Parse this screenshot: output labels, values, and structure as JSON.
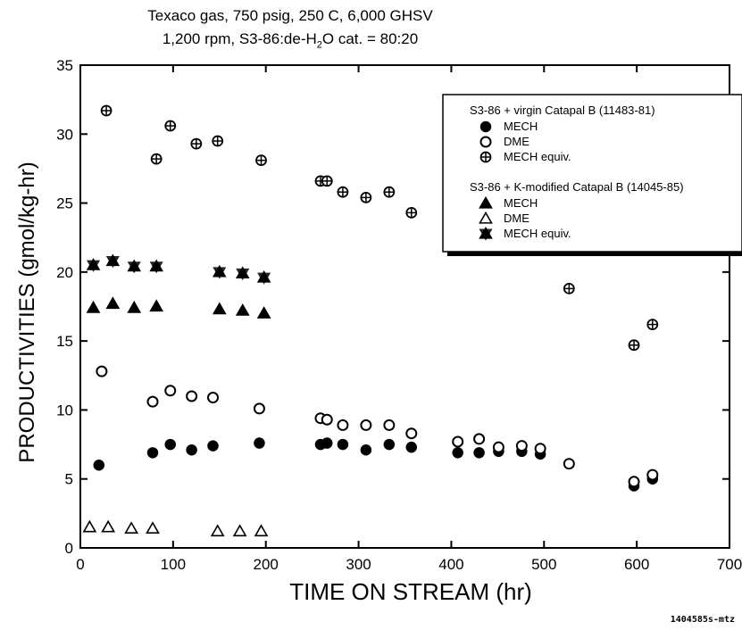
{
  "chart_data": {
    "type": "scatter",
    "title": "Texaco gas, 750 psig, 250 C, 6,000 GHSV",
    "subtitle_prefix": "1,200 rpm, S3-86:de-H",
    "subtitle_sub": "2",
    "subtitle_suffix": "O cat. = 80:20",
    "xlabel": "TIME ON STREAM (hr)",
    "ylabel": "PRODUCTIVITIES (gmol/kg-hr)",
    "xlim": [
      0,
      700
    ],
    "ylim": [
      0,
      35
    ],
    "xticks": [
      "0",
      "100",
      "200",
      "300",
      "400",
      "500",
      "600",
      "700"
    ],
    "yticks": [
      "0",
      "5",
      "10",
      "15",
      "20",
      "25",
      "30",
      "35"
    ],
    "legend": {
      "group1": "S3-86 + virgin Catapal B (11483-81)",
      "group2": "S3-86 + K-modified Catapal B (14045-85)"
    },
    "series": [
      {
        "name": "MECH",
        "group": 1,
        "marker": "filled-circle",
        "x": [
          20,
          78,
          97,
          120,
          143,
          193,
          259,
          266,
          283,
          308,
          333,
          357,
          407,
          430,
          451,
          476,
          496,
          597,
          617
        ],
        "y": [
          6.0,
          6.9,
          7.5,
          7.1,
          7.4,
          7.6,
          7.5,
          7.6,
          7.5,
          7.1,
          7.5,
          7.3,
          6.9,
          6.9,
          7.0,
          7.0,
          6.8,
          4.5,
          5.0
        ]
      },
      {
        "name": "DME",
        "group": 1,
        "marker": "open-circle",
        "x": [
          23,
          78,
          97,
          120,
          143,
          193,
          259,
          266,
          283,
          308,
          333,
          357,
          407,
          430,
          451,
          476,
          496,
          527,
          597,
          617
        ],
        "y": [
          12.8,
          10.6,
          11.4,
          11.0,
          10.9,
          10.1,
          9.4,
          9.3,
          8.9,
          8.9,
          8.9,
          8.3,
          7.7,
          7.9,
          7.3,
          7.4,
          7.2,
          6.1,
          4.8,
          5.3
        ]
      },
      {
        "name": "MECH equiv.",
        "group": 1,
        "marker": "crossed-circle",
        "x": [
          28,
          82,
          97,
          125,
          148,
          195,
          259,
          266,
          283,
          308,
          333,
          357,
          527,
          597,
          617
        ],
        "y": [
          31.7,
          28.2,
          30.6,
          29.3,
          29.5,
          28.1,
          26.6,
          26.6,
          25.8,
          25.4,
          25.8,
          24.3,
          18.8,
          14.7,
          16.2
        ]
      },
      {
        "name": "MECH",
        "group": 2,
        "marker": "filled-triangle",
        "x": [
          14,
          35,
          58,
          82,
          150,
          175,
          198
        ],
        "y": [
          17.4,
          17.7,
          17.4,
          17.5,
          17.3,
          17.2,
          17.0
        ]
      },
      {
        "name": "DME",
        "group": 2,
        "marker": "open-triangle",
        "x": [
          10,
          30,
          55,
          78,
          148,
          172,
          195
        ],
        "y": [
          1.5,
          1.5,
          1.4,
          1.4,
          1.2,
          1.2,
          1.2
        ]
      },
      {
        "name": "MECH equiv.",
        "group": 2,
        "marker": "star-triangle",
        "x": [
          14,
          35,
          58,
          82,
          150,
          175,
          198
        ],
        "y": [
          20.5,
          20.8,
          20.4,
          20.4,
          20.0,
          19.9,
          19.6
        ]
      }
    ],
    "footnote": "1404585s-mtz"
  }
}
